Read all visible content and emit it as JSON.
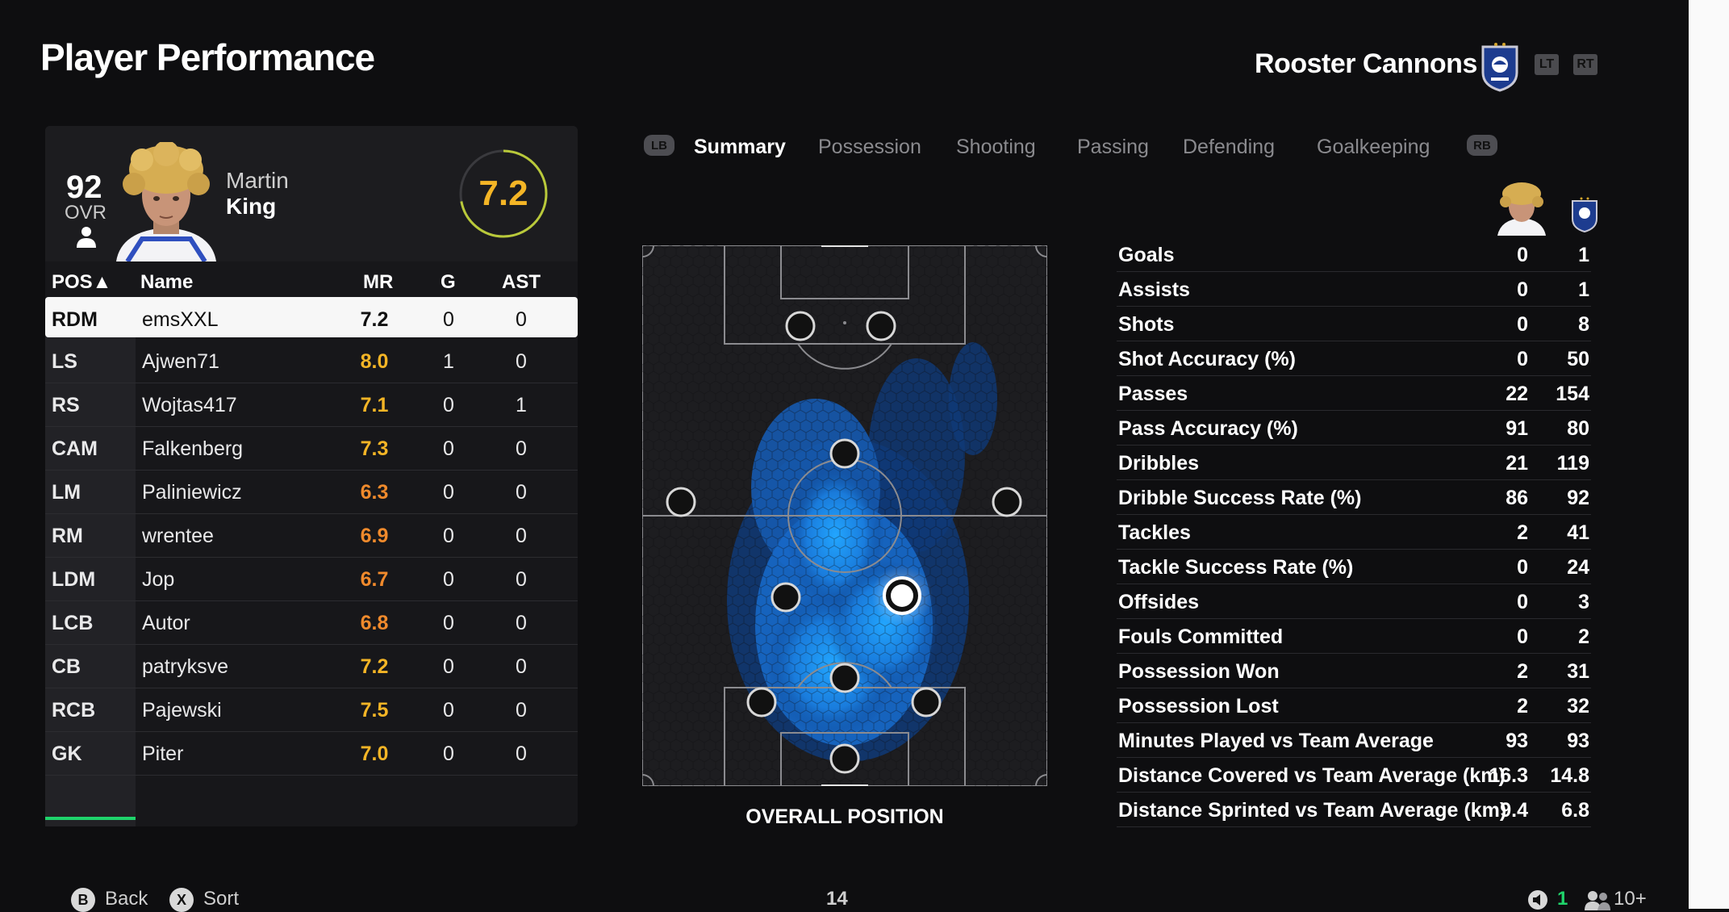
{
  "header": {
    "title": "Player Performance",
    "team_name": "Rooster Cannons",
    "triggers": [
      "LT",
      "RT"
    ]
  },
  "player": {
    "ovr": "92",
    "ovr_label": "OVR",
    "first_name": "Martin",
    "last_name": "King",
    "match_rating": "7.2"
  },
  "table": {
    "headers": {
      "pos": "POS▲",
      "name": "Name",
      "mr": "MR",
      "g": "G",
      "ast": "AST"
    },
    "rows": [
      {
        "pos": "RDM",
        "name": "emsXXL",
        "mr": "7.2",
        "g": "0",
        "ast": "0",
        "mr_color": "#111111"
      },
      {
        "pos": "LS",
        "name": "Ajwen71",
        "mr": "8.0",
        "g": "1",
        "ast": "0",
        "mr_color": "#f4b526"
      },
      {
        "pos": "RS",
        "name": "Wojtas417",
        "mr": "7.1",
        "g": "0",
        "ast": "1",
        "mr_color": "#f4b526"
      },
      {
        "pos": "CAM",
        "name": "Falkenberg",
        "mr": "7.3",
        "g": "0",
        "ast": "0",
        "mr_color": "#f4b526"
      },
      {
        "pos": "LM",
        "name": "Paliniewicz",
        "mr": "6.3",
        "g": "0",
        "ast": "0",
        "mr_color": "#f08a2c"
      },
      {
        "pos": "RM",
        "name": "wrentee",
        "mr": "6.9",
        "g": "0",
        "ast": "0",
        "mr_color": "#f08a2c"
      },
      {
        "pos": "LDM",
        "name": "Jop",
        "mr": "6.7",
        "g": "0",
        "ast": "0",
        "mr_color": "#f08a2c"
      },
      {
        "pos": "LCB",
        "name": "Autor",
        "mr": "6.8",
        "g": "0",
        "ast": "0",
        "mr_color": "#f08a2c"
      },
      {
        "pos": "CB",
        "name": "patryksve",
        "mr": "7.2",
        "g": "0",
        "ast": "0",
        "mr_color": "#f4b526"
      },
      {
        "pos": "RCB",
        "name": "Pajewski",
        "mr": "7.5",
        "g": "0",
        "ast": "0",
        "mr_color": "#f4b526"
      },
      {
        "pos": "GK",
        "name": "Piter",
        "mr": "7.0",
        "g": "0",
        "ast": "0",
        "mr_color": "#f4b526"
      }
    ]
  },
  "tabs": {
    "left_bumper": "LB",
    "right_bumper": "RB",
    "items": [
      "Summary",
      "Possession",
      "Shooting",
      "Passing",
      "Defending",
      "Goalkeeping"
    ],
    "active": "Summary"
  },
  "pitch": {
    "label": "OVERALL POSITION"
  },
  "stats": [
    {
      "label": "Goals",
      "player": "0",
      "team": "1"
    },
    {
      "label": "Assists",
      "player": "0",
      "team": "1"
    },
    {
      "label": "Shots",
      "player": "0",
      "team": "8"
    },
    {
      "label": "Shot Accuracy (%)",
      "player": "0",
      "team": "50"
    },
    {
      "label": "Passes",
      "player": "22",
      "team": "154"
    },
    {
      "label": "Pass Accuracy (%)",
      "player": "91",
      "team": "80"
    },
    {
      "label": "Dribbles",
      "player": "21",
      "team": "119"
    },
    {
      "label": "Dribble Success Rate (%)",
      "player": "86",
      "team": "92"
    },
    {
      "label": "Tackles",
      "player": "2",
      "team": "41"
    },
    {
      "label": "Tackle Success Rate (%)",
      "player": "0",
      "team": "24"
    },
    {
      "label": "Offsides",
      "player": "0",
      "team": "3"
    },
    {
      "label": "Fouls Committed",
      "player": "0",
      "team": "2"
    },
    {
      "label": "Possession Won",
      "player": "2",
      "team": "31"
    },
    {
      "label": "Possession Lost",
      "player": "2",
      "team": "32"
    },
    {
      "label": "Minutes Played vs Team Average",
      "player": "93",
      "team": "93"
    },
    {
      "label": "Distance Covered vs Team Average (km)",
      "player": "16.3",
      "team": "14.8"
    },
    {
      "label": "Distance Sprinted vs Team Average (km)",
      "player": "9.4",
      "team": "6.8"
    }
  ],
  "footer": {
    "back_key": "B",
    "back_label": "Back",
    "sort_key": "X",
    "sort_label": "Sort",
    "page_number": "14",
    "count_a": "1",
    "count_b": "10+"
  },
  "colors": {
    "accent_green": "#1fd36b",
    "rating_gold": "#f4b526",
    "rating_orange": "#f08a2c",
    "heatmap_blue": "#1e9cff"
  }
}
